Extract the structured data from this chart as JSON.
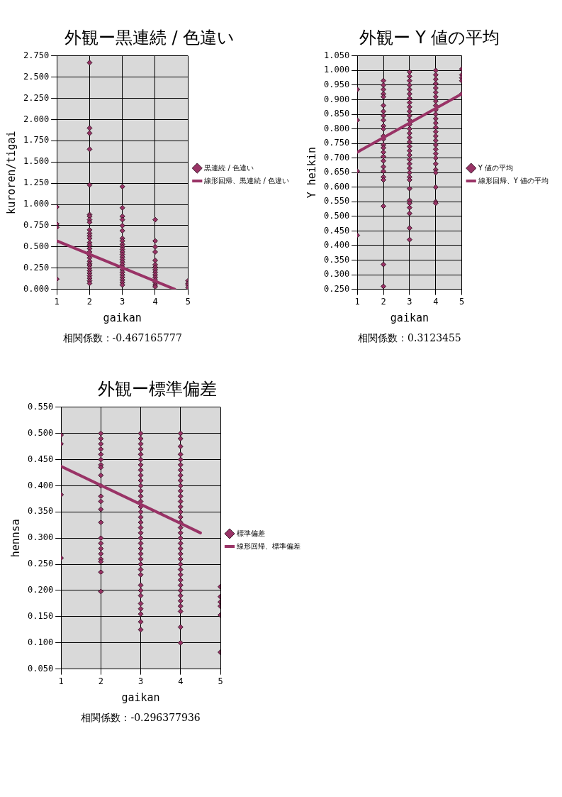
{
  "chart_data": [
    {
      "type": "scatter",
      "title": "外観ー黒連続 / 色違い",
      "xlabel": "gaikan",
      "ylabel": "kuroren/tigai",
      "annotations": [
        "相関係数：-0.467165777"
      ],
      "xlim": [
        1,
        5
      ],
      "xticks": [
        1,
        2,
        3,
        4,
        5
      ],
      "ylim": [
        0,
        2.75
      ],
      "yticks": [
        {
          "value": 0,
          "label": "0.000"
        },
        {
          "value": 0.25,
          "label": "0.250"
        },
        {
          "value": 0.5,
          "label": "0.500"
        },
        {
          "value": 0.75,
          "label": "0.750"
        },
        {
          "value": 1,
          "label": "1.000"
        },
        {
          "value": 1.25,
          "label": "1.250"
        },
        {
          "value": 1.5,
          "label": "1.500"
        },
        {
          "value": 1.75,
          "label": "1.750"
        },
        {
          "value": 2,
          "label": "2.000"
        },
        {
          "value": 2.25,
          "label": "2.250"
        },
        {
          "value": 2.5,
          "label": "2.500"
        },
        {
          "value": 2.75,
          "label": "2.750"
        }
      ],
      "grid": true,
      "legend": "right",
      "marker": "diamond",
      "series": [
        {
          "name": "黒連続 / 色違い",
          "color": "#993366",
          "x": [
            1,
            1,
            1,
            1,
            2,
            2,
            2,
            2,
            2,
            2,
            2,
            2,
            2,
            2,
            2,
            2,
            2,
            2,
            2,
            2,
            2,
            2,
            2,
            2,
            2,
            2,
            2,
            2,
            2,
            2,
            2,
            2,
            2,
            3,
            3,
            3,
            3,
            3,
            3,
            3,
            3,
            3,
            3,
            3,
            3,
            3,
            3,
            3,
            3,
            3,
            3,
            3,
            3,
            3,
            3,
            3,
            3,
            3,
            4,
            4,
            4,
            4,
            4,
            4,
            4,
            4,
            4,
            4,
            4,
            4,
            4,
            4,
            4,
            5,
            5,
            5,
            5
          ],
          "values": [
            0.97,
            0.77,
            0.73,
            0.12,
            2.67,
            1.9,
            1.84,
            1.65,
            1.23,
            0.88,
            0.86,
            0.82,
            0.79,
            0.7,
            0.66,
            0.63,
            0.6,
            0.55,
            0.52,
            0.48,
            0.44,
            0.4,
            0.37,
            0.33,
            0.3,
            0.28,
            0.25,
            0.22,
            0.19,
            0.16,
            0.13,
            0.1,
            0.07,
            1.21,
            0.96,
            0.86,
            0.82,
            0.75,
            0.69,
            0.6,
            0.57,
            0.53,
            0.5,
            0.47,
            0.44,
            0.41,
            0.38,
            0.35,
            0.32,
            0.29,
            0.26,
            0.23,
            0.2,
            0.17,
            0.14,
            0.11,
            0.08,
            0.05,
            0.82,
            0.57,
            0.5,
            0.44,
            0.34,
            0.29,
            0.26,
            0.23,
            0.2,
            0.17,
            0.14,
            0.11,
            0.08,
            0.05,
            0.03,
            0.1,
            0.07,
            0.05,
            0.02
          ]
        },
        {
          "name": "線形回帰、黒連続 / 色違い",
          "type": "line",
          "color": "#993366",
          "marker": "none",
          "x": [
            1,
            4.6
          ],
          "values": [
            0.57,
            0
          ]
        }
      ]
    },
    {
      "type": "scatter",
      "title": "外観ー Y 値の平均",
      "xlabel": "gaikan",
      "ylabel": "Y heikin",
      "annotations": [
        "相関係数：0.3123455"
      ],
      "xlim": [
        1,
        5
      ],
      "xticks": [
        1,
        2,
        3,
        4,
        5
      ],
      "ylim": [
        0.25,
        1.05
      ],
      "yticks": [
        {
          "value": 0.25,
          "label": "0.250"
        },
        {
          "value": 0.3,
          "label": "0.300"
        },
        {
          "value": 0.35,
          "label": "0.350"
        },
        {
          "value": 0.4,
          "label": "0.400"
        },
        {
          "value": 0.45,
          "label": "0.450"
        },
        {
          "value": 0.5,
          "label": "0.500"
        },
        {
          "value": 0.55,
          "label": "0.550"
        },
        {
          "value": 0.6,
          "label": "0.600"
        },
        {
          "value": 0.65,
          "label": "0.650"
        },
        {
          "value": 0.7,
          "label": "0.700"
        },
        {
          "value": 0.75,
          "label": "0.750"
        },
        {
          "value": 0.8,
          "label": "0.800"
        },
        {
          "value": 0.85,
          "label": "0.850"
        },
        {
          "value": 0.9,
          "label": "0.900"
        },
        {
          "value": 0.95,
          "label": "0.950"
        },
        {
          "value": 1,
          "label": "1.000"
        },
        {
          "value": 1.05,
          "label": "1.050"
        }
      ],
      "grid": true,
      "legend": "right",
      "marker": "diamond",
      "series": [
        {
          "name": "Y 値の平均",
          "color": "#993366",
          "x": [
            1,
            1,
            1,
            1,
            2,
            2,
            2,
            2,
            2,
            2,
            2,
            2,
            2,
            2,
            2,
            2,
            2,
            2,
            2,
            2,
            2,
            2,
            2,
            2,
            2,
            2,
            2,
            2,
            2,
            3,
            3,
            3,
            3,
            3,
            3,
            3,
            3,
            3,
            3,
            3,
            3,
            3,
            3,
            3,
            3,
            3,
            3,
            3,
            3,
            3,
            3,
            3,
            3,
            3,
            3,
            3,
            3,
            3,
            3,
            3,
            3,
            3,
            4,
            4,
            4,
            4,
            4,
            4,
            4,
            4,
            4,
            4,
            4,
            4,
            4,
            4,
            4,
            4,
            4,
            4,
            4,
            4,
            4,
            4,
            4,
            4,
            4,
            4,
            4,
            5,
            5,
            5,
            5,
            5
          ],
          "values": [
            0.935,
            0.83,
            0.655,
            0.435,
            0.965,
            0.95,
            0.935,
            0.92,
            0.91,
            0.88,
            0.86,
            0.845,
            0.83,
            0.81,
            0.8,
            0.775,
            0.765,
            0.745,
            0.735,
            0.72,
            0.705,
            0.69,
            0.67,
            0.655,
            0.635,
            0.625,
            0.535,
            0.335,
            0.26,
            0.995,
            0.98,
            0.965,
            0.95,
            0.935,
            0.92,
            0.905,
            0.89,
            0.875,
            0.86,
            0.845,
            0.83,
            0.815,
            0.8,
            0.785,
            0.77,
            0.755,
            0.74,
            0.725,
            0.71,
            0.695,
            0.68,
            0.665,
            0.65,
            0.635,
            0.625,
            0.595,
            0.555,
            0.545,
            0.53,
            0.51,
            0.46,
            0.42,
            1,
            0.985,
            0.97,
            0.955,
            0.94,
            0.925,
            0.91,
            0.895,
            0.88,
            0.865,
            0.85,
            0.835,
            0.82,
            0.805,
            0.79,
            0.775,
            0.76,
            0.745,
            0.73,
            0.715,
            0.7,
            0.68,
            0.66,
            0.65,
            0.6,
            0.55,
            0.545,
            1.005,
            0.985,
            0.975,
            0.965,
            0.92
          ]
        },
        {
          "name": "線形回帰、Y 値の平均",
          "type": "line",
          "color": "#993366",
          "marker": "none",
          "x": [
            1,
            5
          ],
          "values": [
            0.72,
            0.92
          ]
        }
      ]
    },
    {
      "type": "scatter",
      "title": "外観ー標準偏差",
      "xlabel": "gaikan",
      "ylabel": "hennsa",
      "annotations": [
        "相関係数：-0.296377936"
      ],
      "xlim": [
        1,
        5
      ],
      "xticks": [
        1,
        2,
        3,
        4,
        5
      ],
      "ylim": [
        0.05,
        0.55
      ],
      "yticks": [
        {
          "value": 0.05,
          "label": "0.050"
        },
        {
          "value": 0.1,
          "label": "0.100"
        },
        {
          "value": 0.15,
          "label": "0.150"
        },
        {
          "value": 0.2,
          "label": "0.200"
        },
        {
          "value": 0.25,
          "label": "0.250"
        },
        {
          "value": 0.3,
          "label": "0.300"
        },
        {
          "value": 0.35,
          "label": "0.350"
        },
        {
          "value": 0.4,
          "label": "0.400"
        },
        {
          "value": 0.45,
          "label": "0.450"
        },
        {
          "value": 0.5,
          "label": "0.500"
        },
        {
          "value": 0.55,
          "label": "0.550"
        }
      ],
      "grid": true,
      "legend": "right",
      "marker": "diamond",
      "series": [
        {
          "name": "標準偏差",
          "color": "#993366",
          "x": [
            1,
            1,
            1,
            1,
            2,
            2,
            2,
            2,
            2,
            2,
            2,
            2,
            2,
            2,
            2,
            2,
            2,
            2,
            2,
            2,
            2,
            2,
            2,
            2,
            2,
            2,
            3,
            3,
            3,
            3,
            3,
            3,
            3,
            3,
            3,
            3,
            3,
            3,
            3,
            3,
            3,
            3,
            3,
            3,
            3,
            3,
            3,
            3,
            3,
            3,
            3,
            3,
            3,
            3,
            3,
            3,
            3,
            3,
            3,
            3,
            3,
            3,
            4,
            4,
            4,
            4,
            4,
            4,
            4,
            4,
            4,
            4,
            4,
            4,
            4,
            4,
            4,
            4,
            4,
            4,
            4,
            4,
            4,
            4,
            4,
            4,
            4,
            4,
            4,
            4,
            4,
            4,
            4,
            4,
            4,
            4,
            4,
            4,
            5,
            5,
            5,
            5,
            5,
            5
          ],
          "values": [
            0.497,
            0.48,
            0.383,
            0.262,
            0.5,
            0.49,
            0.48,
            0.47,
            0.46,
            0.45,
            0.44,
            0.435,
            0.42,
            0.4,
            0.38,
            0.37,
            0.355,
            0.33,
            0.3,
            0.29,
            0.28,
            0.27,
            0.26,
            0.255,
            0.235,
            0.198,
            0.5,
            0.49,
            0.48,
            0.47,
            0.46,
            0.45,
            0.44,
            0.43,
            0.42,
            0.41,
            0.4,
            0.39,
            0.38,
            0.37,
            0.36,
            0.35,
            0.34,
            0.33,
            0.32,
            0.31,
            0.3,
            0.29,
            0.28,
            0.27,
            0.26,
            0.25,
            0.24,
            0.23,
            0.21,
            0.2,
            0.19,
            0.175,
            0.165,
            0.155,
            0.14,
            0.125,
            0.5,
            0.49,
            0.475,
            0.46,
            0.45,
            0.44,
            0.43,
            0.42,
            0.41,
            0.4,
            0.39,
            0.38,
            0.37,
            0.36,
            0.35,
            0.34,
            0.33,
            0.32,
            0.31,
            0.3,
            0.29,
            0.28,
            0.27,
            0.26,
            0.25,
            0.24,
            0.23,
            0.22,
            0.21,
            0.2,
            0.19,
            0.18,
            0.17,
            0.16,
            0.13,
            0.1,
            0.207,
            0.188,
            0.178,
            0.17,
            0.153,
            0.082
          ]
        },
        {
          "name": "線形回帰、標準偏差",
          "type": "line",
          "color": "#993366",
          "marker": "none",
          "x": [
            1,
            4.5
          ],
          "values": [
            0.437,
            0.31
          ]
        }
      ]
    }
  ]
}
